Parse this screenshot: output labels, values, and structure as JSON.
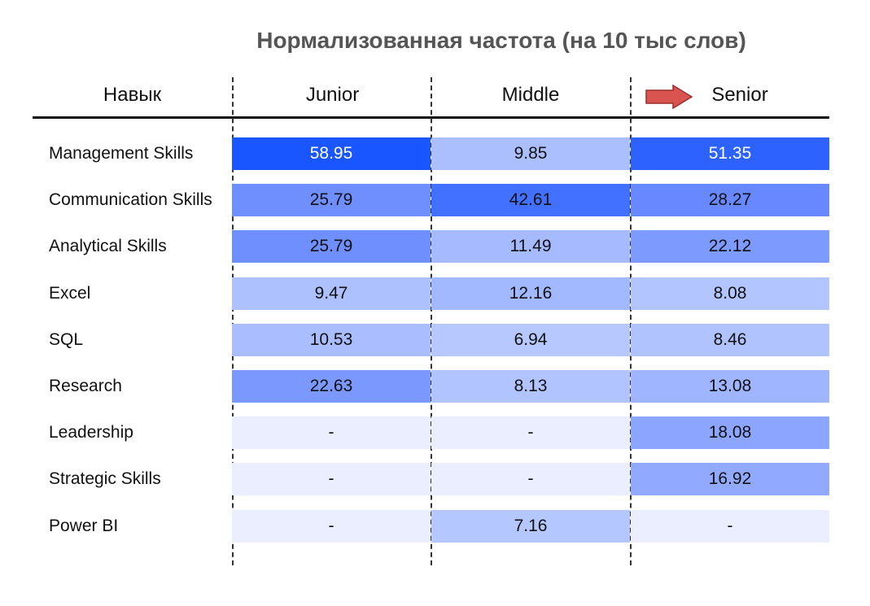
{
  "chart_data": {
    "type": "table",
    "title": "Нормализованная частота (на 10 тыс слов)",
    "columns": [
      "Навык",
      "Junior",
      "Middle",
      "Senior"
    ],
    "rows": [
      {
        "skill": "Management Skills",
        "values": [
          "58.95",
          "9.85",
          "51.35"
        ]
      },
      {
        "skill": "Communication Skills",
        "values": [
          "25.79",
          "42.61",
          "28.27"
        ]
      },
      {
        "skill": "Analytical Skills",
        "values": [
          "25.79",
          "11.49",
          "22.12"
        ]
      },
      {
        "skill": "Excel",
        "values": [
          "9.47",
          "12.16",
          "8.08"
        ]
      },
      {
        "skill": "SQL",
        "values": [
          "10.53",
          "6.94",
          "8.46"
        ]
      },
      {
        "skill": "Research",
        "values": [
          "22.63",
          "8.13",
          "13.08"
        ]
      },
      {
        "skill": "Leadership",
        "values": [
          "-",
          "-",
          "18.08"
        ]
      },
      {
        "skill": "Strategic Skills",
        "values": [
          "-",
          "-",
          "16.92"
        ]
      },
      {
        "skill": "Power BI",
        "values": [
          "-",
          "7.16",
          "-"
        ]
      }
    ],
    "highlighted_column": "Senior",
    "highlight_marker": "red-arrow",
    "color_scale": {
      "empty": "#eaeefe",
      "low": "#b6c8ff",
      "mid": "#6889ff",
      "high": "#1a56ff"
    }
  }
}
